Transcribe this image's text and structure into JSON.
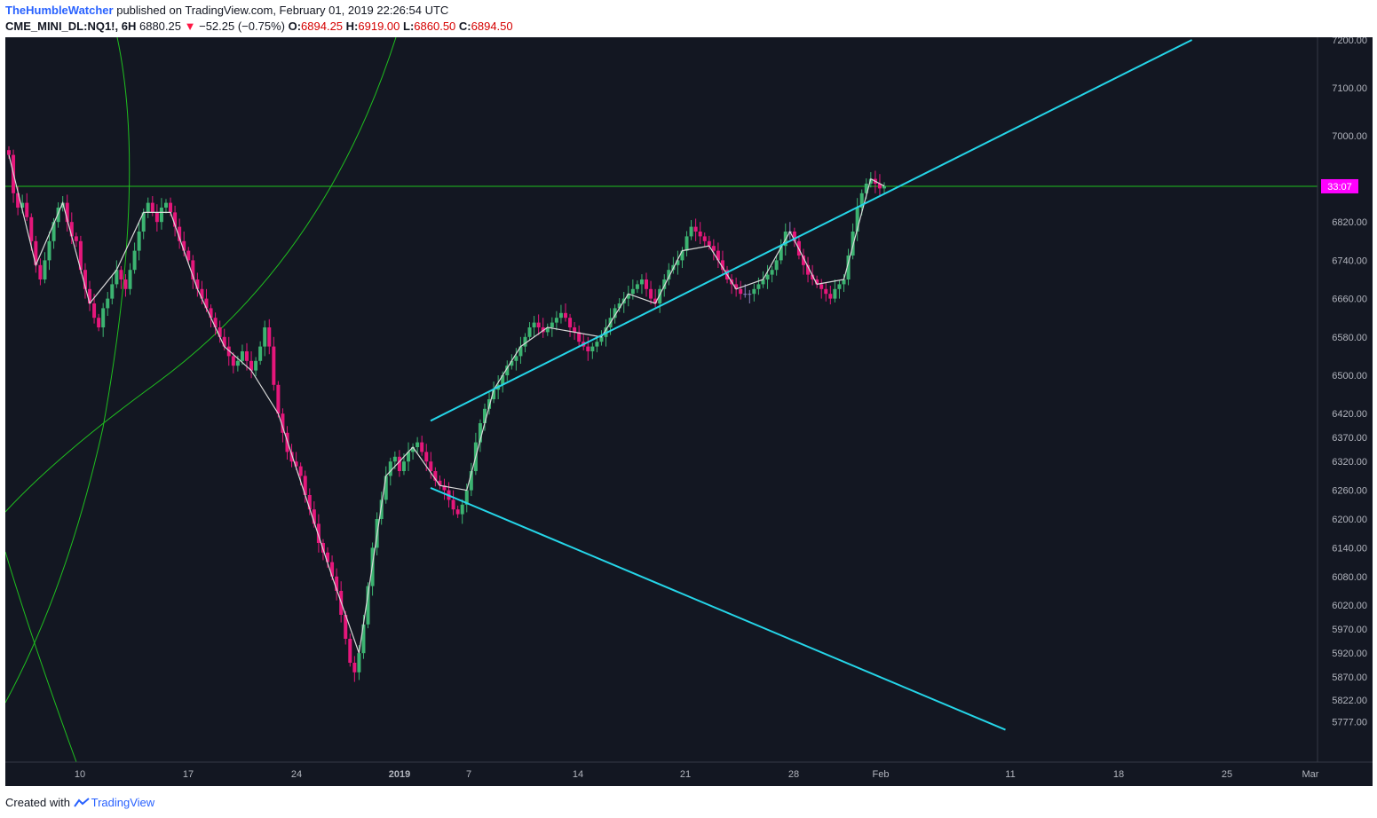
{
  "header": {
    "author": "TheHumbleWatcher",
    "published_text": "published on TradingView.com, February 01, 2019 22:26:54 UTC",
    "symbol": "CME_MINI_DL:NQ1!, 6H",
    "last": "6880.25",
    "change": "−52.25 (−0.75%)",
    "open_label": "O:",
    "open": "6894.25",
    "high_label": "H:",
    "high": "6919.00",
    "low_label": "L:",
    "low": "6860.50",
    "close_label": "C:",
    "close": "6894.50"
  },
  "footer": {
    "created_text": "Created with",
    "brand": "TradingView"
  },
  "colors": {
    "background": "#131722",
    "up_candle": "#3cb371",
    "down_candle": "#e5177b",
    "neutral_candle": "#8c7fc2",
    "trendline": "#25d5e8",
    "zigzag": "#d9d9d9",
    "arc": "#1fbf1f",
    "price_line": "#1fbf1f",
    "price_label_bg": "#ff00ff"
  },
  "chart_data": {
    "type": "candlestick",
    "symbol": "CME_MINI_DL:NQ1!",
    "timeframe": "6H",
    "price_label": "33:07",
    "current_price": 6894.5,
    "x_tick_labels": [
      "10",
      "17",
      "24",
      "2019",
      "7",
      "14",
      "21",
      "28",
      "Feb",
      "11",
      "18",
      "25",
      "Mar"
    ],
    "x_tick_dates": [
      "2018-12-10",
      "2018-12-17",
      "2018-12-24",
      "2019-01-01",
      "2019-01-07",
      "2019-01-14",
      "2019-01-21",
      "2019-01-28",
      "2019-02-01",
      "2019-02-11",
      "2019-02-18",
      "2019-02-25",
      "2019-03-01"
    ],
    "y_tick_labels": [
      "7200.00",
      "7100.00",
      "7000.00",
      "6820.00",
      "6740.00",
      "6660.00",
      "6580.00",
      "6500.00",
      "6420.00",
      "6370.00",
      "6320.00",
      "6260.00",
      "6200.00",
      "6140.00",
      "6080.00",
      "6020.00",
      "5970.00",
      "5920.00",
      "5870.00",
      "5822.00",
      "5777.00"
    ],
    "closes": [
      6960,
      6880,
      6850,
      6860,
      6830,
      6780,
      6730,
      6700,
      6740,
      6780,
      6820,
      6850,
      6860,
      6820,
      6790,
      6780,
      6720,
      6680,
      6650,
      6620,
      6600,
      6640,
      6660,
      6690,
      6720,
      6700,
      6680,
      6720,
      6760,
      6800,
      6840,
      6860,
      6840,
      6820,
      6850,
      6860,
      6840,
      6810,
      6780,
      6760,
      6740,
      6700,
      6680,
      6660,
      6640,
      6620,
      6600,
      6580,
      6560,
      6540,
      6520,
      6530,
      6550,
      6530,
      6510,
      6530,
      6560,
      6600,
      6560,
      6480,
      6420,
      6380,
      6340,
      6320,
      6310,
      6290,
      6250,
      6220,
      6190,
      6150,
      6130,
      6110,
      6080,
      6050,
      6000,
      5950,
      5900,
      5880,
      5920,
      5980,
      6060,
      6140,
      6200,
      6240,
      6290,
      6320,
      6330,
      6300,
      6320,
      6340,
      6350,
      6360,
      6340,
      6320,
      6300,
      6280,
      6270,
      6260,
      6240,
      6220,
      6210,
      6230,
      6260,
      6300,
      6360,
      6400,
      6430,
      6450,
      6470,
      6480,
      6500,
      6520,
      6530,
      6540,
      6560,
      6580,
      6600,
      6610,
      6600,
      6590,
      6600,
      6610,
      6620,
      6630,
      6620,
      6600,
      6590,
      6570,
      6560,
      6550,
      6560,
      6570,
      6580,
      6600,
      6620,
      6640,
      6650,
      6660,
      6670,
      6680,
      6690,
      6700,
      6680,
      6660,
      6650,
      6680,
      6700,
      6720,
      6730,
      6740,
      6760,
      6790,
      6810,
      6800,
      6790,
      6780,
      6770,
      6760,
      6740,
      6720,
      6700,
      6690,
      6680,
      6670,
      6670,
      6670,
      6680,
      6690,
      6700,
      6710,
      6720,
      6740,
      6770,
      6800,
      6800,
      6780,
      6750,
      6730,
      6710,
      6700,
      6690,
      6680,
      6670,
      6660,
      6680,
      6690,
      6700,
      6750,
      6800,
      6850,
      6880,
      6900,
      6910,
      6900,
      6890,
      6895
    ],
    "cyan_lines": [
      {
        "from": [
          "2018-12-28",
          6405
        ],
        "to": [
          "2019-02-15",
          7200
        ]
      },
      {
        "from": [
          "2018-12-28",
          6265
        ],
        "to": [
          "2019-02-03",
          5760
        ]
      }
    ],
    "horizontal_line": 6894.5
  }
}
